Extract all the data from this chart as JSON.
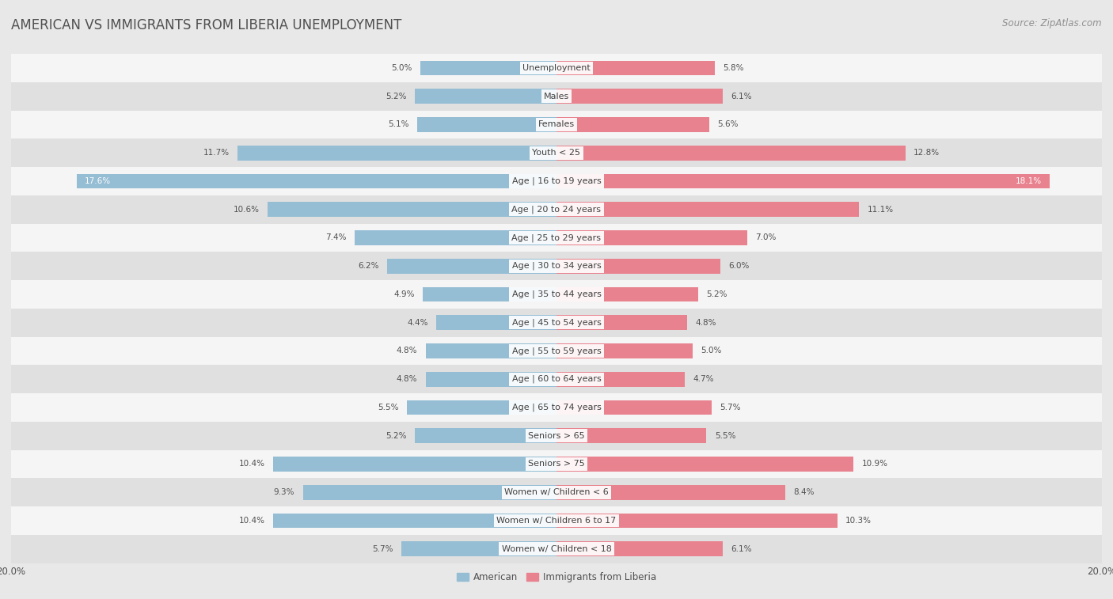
{
  "title": "AMERICAN VS IMMIGRANTS FROM LIBERIA UNEMPLOYMENT",
  "source": "Source: ZipAtlas.com",
  "categories": [
    "Unemployment",
    "Males",
    "Females",
    "Youth < 25",
    "Age | 16 to 19 years",
    "Age | 20 to 24 years",
    "Age | 25 to 29 years",
    "Age | 30 to 34 years",
    "Age | 35 to 44 years",
    "Age | 45 to 54 years",
    "Age | 55 to 59 years",
    "Age | 60 to 64 years",
    "Age | 65 to 74 years",
    "Seniors > 65",
    "Seniors > 75",
    "Women w/ Children < 6",
    "Women w/ Children 6 to 17",
    "Women w/ Children < 18"
  ],
  "american": [
    5.0,
    5.2,
    5.1,
    11.7,
    17.6,
    10.6,
    7.4,
    6.2,
    4.9,
    4.4,
    4.8,
    4.8,
    5.5,
    5.2,
    10.4,
    9.3,
    10.4,
    5.7
  ],
  "liberia": [
    5.8,
    6.1,
    5.6,
    12.8,
    18.1,
    11.1,
    7.0,
    6.0,
    5.2,
    4.8,
    5.0,
    4.7,
    5.7,
    5.5,
    10.9,
    8.4,
    10.3,
    6.1
  ],
  "american_color": "#95bdd4",
  "liberia_color": "#e8828e",
  "american_label": "American",
  "liberia_label": "Immigrants from Liberia",
  "xlim": 20.0,
  "background_color": "#e8e8e8",
  "row_color_light": "#f5f5f5",
  "row_color_dark": "#e0e0e0",
  "title_color": "#505050",
  "source_color": "#909090",
  "title_fontsize": 12,
  "source_fontsize": 8.5,
  "label_fontsize": 8,
  "value_fontsize": 7.5,
  "value_inside_threshold": 15.0,
  "value_inside_color": "#ffffff",
  "value_outside_color": "#505050"
}
